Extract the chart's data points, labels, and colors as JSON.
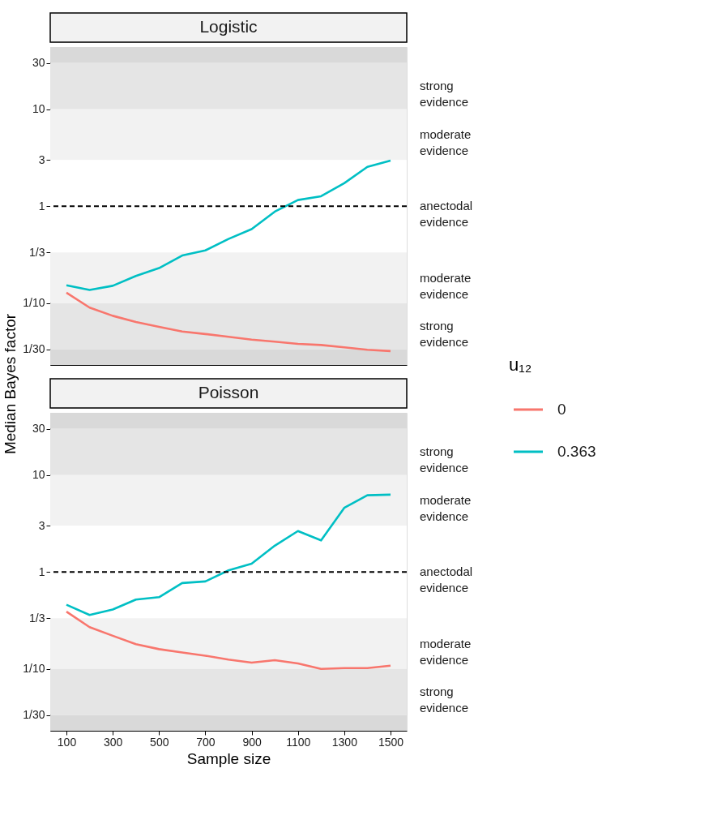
{
  "chart_data": [
    {
      "type": "line",
      "title": "Logistic",
      "ylabel": "Median Bayes factor",
      "log": "y",
      "legend": "right",
      "legend_title": "u₁₂",
      "grid": false,
      "tick_labels": "y",
      "x": [
        100,
        200,
        300,
        400,
        500,
        600,
        700,
        800,
        900,
        1000,
        1100,
        1200,
        1300,
        1400,
        1500
      ],
      "xlim": [
        30,
        1570
      ],
      "ylim": [
        0.023,
        44
      ],
      "yticks": [
        {
          "value": 0.03333,
          "label": "1/30"
        },
        {
          "value": 0.1,
          "label": "1/10"
        },
        {
          "value": 0.3333,
          "label": "1/3"
        },
        1,
        3,
        10,
        30
      ],
      "series": [
        {
          "name": "0",
          "color": "#f8766d",
          "values": [
            0.128,
            0.09,
            0.074,
            0.064,
            0.057,
            0.051,
            0.048,
            0.045,
            0.042,
            0.04,
            0.038,
            0.037,
            0.035,
            0.033,
            0.032
          ]
        },
        {
          "name": "0.363",
          "color": "#00bfc4",
          "values": [
            0.153,
            0.137,
            0.151,
            0.191,
            0.23,
            0.31,
            0.35,
            0.46,
            0.58,
            0.88,
            1.16,
            1.27,
            1.73,
            2.55,
            2.96
          ]
        }
      ],
      "ref_lines": [
        {
          "axis": "y",
          "value": 1,
          "color": "#000000",
          "line_style": "dashed"
        }
      ],
      "bands": [
        {
          "axis": "y",
          "from": 30,
          "to": 44,
          "color": "#d9d9d9"
        },
        {
          "axis": "y",
          "from": 10,
          "to": 30,
          "color": "#e5e5e5",
          "label": "strong evidence"
        },
        {
          "axis": "y",
          "from": 3,
          "to": 10,
          "color": "#f2f2f2",
          "label": "moderate evidence"
        },
        {
          "axis": "y",
          "from": 0.3333,
          "to": 3,
          "color": "#ffffff",
          "label": "anectodal evidence"
        },
        {
          "axis": "y",
          "from": 0.1,
          "to": 0.3333,
          "color": "#f2f2f2",
          "label": "moderate evidence"
        },
        {
          "axis": "y",
          "from": 0.03333,
          "to": 0.1,
          "color": "#e5e5e5",
          "label": "strong evidence"
        },
        {
          "axis": "y",
          "from": 0.023,
          "to": 0.03333,
          "color": "#d9d9d9"
        }
      ]
    },
    {
      "type": "line",
      "title": "Poisson",
      "xlabel": "Sample size",
      "log": "y",
      "grid": false,
      "x": [
        100,
        200,
        300,
        400,
        500,
        600,
        700,
        800,
        900,
        1000,
        1100,
        1200,
        1300,
        1400,
        1500
      ],
      "xlim": [
        30,
        1570
      ],
      "ylim": [
        0.023,
        44
      ],
      "xticks": [
        100,
        300,
        500,
        700,
        900,
        1100,
        1300,
        1500
      ],
      "yticks": [
        {
          "value": 0.03333,
          "label": "1/30"
        },
        {
          "value": 0.1,
          "label": "1/10"
        },
        {
          "value": 0.3333,
          "label": "1/3"
        },
        1,
        3,
        10,
        30
      ],
      "series": [
        {
          "name": "0",
          "color": "#f8766d",
          "values": [
            0.39,
            0.27,
            0.22,
            0.18,
            0.16,
            0.148,
            0.137,
            0.125,
            0.116,
            0.123,
            0.114,
            0.1,
            0.102,
            0.102,
            0.108
          ]
        },
        {
          "name": "0.363",
          "color": "#00bfc4",
          "values": [
            0.46,
            0.36,
            0.41,
            0.52,
            0.55,
            0.77,
            0.8,
            1.04,
            1.22,
            1.87,
            2.65,
            2.12,
            4.6,
            6.2,
            6.3
          ]
        }
      ],
      "ref_lines": [
        {
          "axis": "y",
          "value": 1,
          "color": "#000000",
          "line_style": "dashed"
        }
      ],
      "bands": [
        {
          "axis": "y",
          "from": 30,
          "to": 44,
          "color": "#d9d9d9"
        },
        {
          "axis": "y",
          "from": 10,
          "to": 30,
          "color": "#e5e5e5",
          "label": "strong evidence"
        },
        {
          "axis": "y",
          "from": 3,
          "to": 10,
          "color": "#f2f2f2",
          "label": "moderate evidence"
        },
        {
          "axis": "y",
          "from": 0.3333,
          "to": 3,
          "color": "#ffffff",
          "label": "anectodal evidence"
        },
        {
          "axis": "y",
          "from": 0.1,
          "to": 0.3333,
          "color": "#f2f2f2",
          "label": "moderate evidence"
        },
        {
          "axis": "y",
          "from": 0.03333,
          "to": 0.1,
          "color": "#e5e5e5",
          "label": "strong evidence"
        },
        {
          "axis": "y",
          "from": 0.023,
          "to": 0.03333,
          "color": "#d9d9d9"
        }
      ]
    }
  ]
}
